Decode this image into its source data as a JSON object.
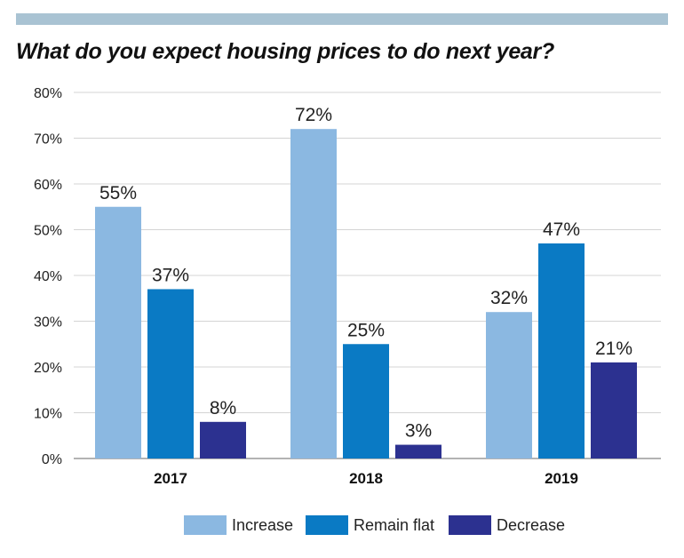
{
  "colors": {
    "top_bar": "#a9c3d3",
    "grid": "#d4d4d4",
    "axis": "#9a9a9a"
  },
  "chart_data": {
    "type": "bar",
    "title": "What do you expect housing prices to do next year?",
    "xlabel": "",
    "ylabel": "",
    "categories": [
      "2017",
      "2018",
      "2019"
    ],
    "series": [
      {
        "name": "Increase",
        "color": "#8bb8e1",
        "values": [
          55,
          72,
          32
        ],
        "labels": [
          "55%",
          "72%",
          "32%"
        ]
      },
      {
        "name": "Remain flat",
        "color": "#0a7ac4",
        "values": [
          37,
          25,
          47
        ],
        "labels": [
          "37%",
          "25%",
          "47%"
        ]
      },
      {
        "name": "Decrease",
        "color": "#2c3190",
        "values": [
          8,
          3,
          21
        ],
        "labels": [
          "8%",
          "3%",
          "21%"
        ]
      }
    ],
    "ylim": [
      0,
      80
    ],
    "yticks": [
      0,
      10,
      20,
      30,
      40,
      50,
      60,
      70,
      80
    ],
    "ytick_labels": [
      "0%",
      "10%",
      "20%",
      "30%",
      "40%",
      "50%",
      "60%",
      "70%",
      "80%"
    ],
    "grid": true,
    "legend_position": "bottom"
  }
}
